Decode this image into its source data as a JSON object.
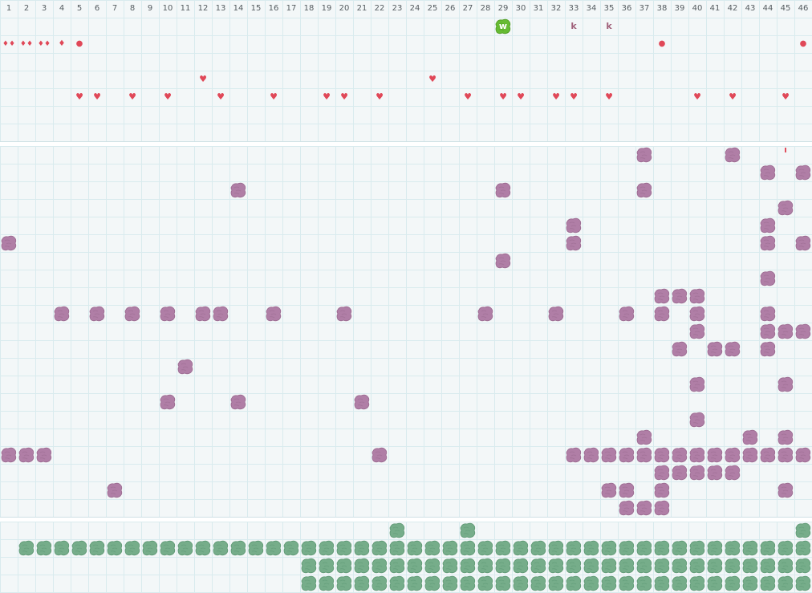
{
  "colors": {
    "red": "#e04858",
    "purple": "#b07ea6",
    "purple_edge": "#9a6a90",
    "green": "#76ad8a",
    "green_edge": "#5e9874",
    "bright_green": "#66bb33",
    "brown": "#a0607a",
    "grid_line": "#d9ebee",
    "background": "#f3f7f8"
  },
  "columns": [
    "1",
    "2",
    "3",
    "4",
    "5",
    "6",
    "7",
    "8",
    "9",
    "10",
    "11",
    "12",
    "13",
    "14",
    "15",
    "16",
    "17",
    "18",
    "19",
    "20",
    "21",
    "22",
    "23",
    "24",
    "25",
    "26",
    "27",
    "28",
    "29",
    "30",
    "31",
    "32",
    "33",
    "34",
    "35",
    "36",
    "37",
    "38",
    "39",
    "40",
    "41",
    "42",
    "43",
    "44",
    "45",
    "46"
  ],
  "top_markers": [
    {
      "col": 1,
      "row": 1,
      "text": "♦♦",
      "color": "red",
      "size": 9
    },
    {
      "col": 2,
      "row": 1,
      "text": "♦♦",
      "color": "red",
      "size": 9
    },
    {
      "col": 3,
      "row": 1,
      "text": "♦♦",
      "color": "red",
      "size": 9
    },
    {
      "col": 4,
      "row": 1,
      "text": "♦",
      "color": "red",
      "size": 10
    },
    {
      "col": 5,
      "row": 1,
      "text": "●",
      "color": "red",
      "size": 10
    },
    {
      "col": 38,
      "row": 1,
      "text": "●",
      "color": "red",
      "size": 10
    },
    {
      "col": 46,
      "row": 1,
      "text": "●",
      "color": "red",
      "size": 10
    },
    {
      "col": 33,
      "row": 0,
      "text": "k",
      "color": "brown",
      "size": 11
    },
    {
      "col": 35,
      "row": 0,
      "text": "k",
      "color": "brown",
      "size": 11
    },
    {
      "col": 12,
      "row": 3,
      "text": "♥",
      "color": "red",
      "size": 11
    },
    {
      "col": 25,
      "row": 3,
      "text": "♥",
      "color": "red",
      "size": 11
    },
    {
      "col": 5,
      "row": 4,
      "text": "♥",
      "color": "red",
      "size": 11
    },
    {
      "col": 6,
      "row": 4,
      "text": "♥",
      "color": "red",
      "size": 11
    },
    {
      "col": 8,
      "row": 4,
      "text": "♥",
      "color": "red",
      "size": 11
    },
    {
      "col": 10,
      "row": 4,
      "text": "♥",
      "color": "red",
      "size": 11
    },
    {
      "col": 13,
      "row": 4,
      "text": "♥",
      "color": "red",
      "size": 11
    },
    {
      "col": 16,
      "row": 4,
      "text": "♥",
      "color": "red",
      "size": 11
    },
    {
      "col": 19,
      "row": 4,
      "text": "♥",
      "color": "red",
      "size": 11
    },
    {
      "col": 20,
      "row": 4,
      "text": "♥",
      "color": "red",
      "size": 11
    },
    {
      "col": 22,
      "row": 4,
      "text": "♥",
      "color": "red",
      "size": 11
    },
    {
      "col": 27,
      "row": 4,
      "text": "♥",
      "color": "red",
      "size": 11
    },
    {
      "col": 29,
      "row": 4,
      "text": "♥",
      "color": "red",
      "size": 11
    },
    {
      "col": 30,
      "row": 4,
      "text": "♥",
      "color": "red",
      "size": 11
    },
    {
      "col": 32,
      "row": 4,
      "text": "♥",
      "color": "red",
      "size": 11
    },
    {
      "col": 33,
      "row": 4,
      "text": "♥",
      "color": "red",
      "size": 11
    },
    {
      "col": 35,
      "row": 4,
      "text": "♥",
      "color": "red",
      "size": 11
    },
    {
      "col": 40,
      "row": 4,
      "text": "♥",
      "color": "red",
      "size": 11
    },
    {
      "col": 42,
      "row": 4,
      "text": "♥",
      "color": "red",
      "size": 11
    },
    {
      "col": 45,
      "row": 4,
      "text": "♥",
      "color": "red",
      "size": 11
    },
    {
      "col": 45,
      "row": 7,
      "text": "ı",
      "color": "red",
      "size": 11
    }
  ],
  "player": {
    "col": 29,
    "row": 0,
    "text": "w",
    "color": "bright_green"
  },
  "purple_blobs": [
    [
      37,
      0
    ],
    [
      42,
      0
    ],
    [
      44,
      1
    ],
    [
      46,
      1
    ],
    [
      14,
      2
    ],
    [
      29,
      2
    ],
    [
      37,
      2
    ],
    [
      45,
      3
    ],
    [
      33,
      4
    ],
    [
      44,
      4
    ],
    [
      1,
      5
    ],
    [
      33,
      5
    ],
    [
      44,
      5
    ],
    [
      46,
      5
    ],
    [
      29,
      6
    ],
    [
      44,
      7
    ],
    [
      38,
      8
    ],
    [
      39,
      8
    ],
    [
      40,
      8
    ],
    [
      4,
      9
    ],
    [
      6,
      9
    ],
    [
      8,
      9
    ],
    [
      10,
      9
    ],
    [
      12,
      9
    ],
    [
      13,
      9
    ],
    [
      16,
      9
    ],
    [
      20,
      9
    ],
    [
      28,
      9
    ],
    [
      32,
      9
    ],
    [
      36,
      9
    ],
    [
      38,
      9
    ],
    [
      40,
      9
    ],
    [
      44,
      9
    ],
    [
      40,
      10
    ],
    [
      44,
      10
    ],
    [
      45,
      10
    ],
    [
      46,
      10
    ],
    [
      39,
      11
    ],
    [
      41,
      11
    ],
    [
      42,
      11
    ],
    [
      44,
      11
    ],
    [
      11,
      12
    ],
    [
      40,
      13
    ],
    [
      45,
      13
    ],
    [
      10,
      14
    ],
    [
      14,
      14
    ],
    [
      21,
      14
    ],
    [
      40,
      15
    ],
    [
      37,
      16
    ],
    [
      43,
      16
    ],
    [
      45,
      16
    ],
    [
      1,
      17
    ],
    [
      2,
      17
    ],
    [
      3,
      17
    ],
    [
      22,
      17
    ],
    [
      33,
      17
    ],
    [
      34,
      17
    ],
    [
      35,
      17
    ],
    [
      36,
      17
    ],
    [
      37,
      17
    ],
    [
      38,
      17
    ],
    [
      39,
      17
    ],
    [
      40,
      17
    ],
    [
      41,
      17
    ],
    [
      42,
      17
    ],
    [
      43,
      17
    ],
    [
      44,
      17
    ],
    [
      45,
      17
    ],
    [
      46,
      17
    ],
    [
      38,
      18
    ],
    [
      39,
      18
    ],
    [
      40,
      18
    ],
    [
      41,
      18
    ],
    [
      42,
      18
    ],
    [
      7,
      19
    ],
    [
      35,
      19
    ],
    [
      36,
      19
    ],
    [
      38,
      19
    ],
    [
      45,
      19
    ],
    [
      36,
      20
    ],
    [
      37,
      20
    ],
    [
      38,
      20
    ]
  ],
  "green_blobs": {
    "singles": [
      [
        23,
        0
      ],
      [
        27,
        0
      ],
      [
        46,
        0
      ]
    ],
    "rows": [
      {
        "row": 1,
        "from": 2,
        "to": 46
      },
      {
        "row": 2,
        "from": 18,
        "to": 46
      },
      {
        "row": 3,
        "from": 18,
        "to": 46
      }
    ]
  }
}
